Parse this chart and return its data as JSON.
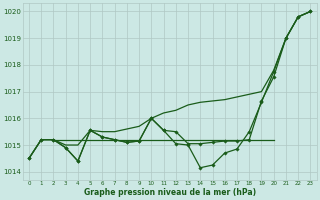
{
  "background_color": "#cce8e4",
  "grid_color": "#b0c8c4",
  "line_color": "#1a5c1a",
  "title": "Graphe pression niveau de la mer (hPa)",
  "xlim": [
    -0.5,
    23.5
  ],
  "ylim": [
    1013.7,
    1020.3
  ],
  "yticks": [
    1014,
    1015,
    1016,
    1017,
    1018,
    1019,
    1020
  ],
  "xticks": [
    0,
    1,
    2,
    3,
    4,
    5,
    6,
    7,
    8,
    9,
    10,
    11,
    12,
    13,
    14,
    15,
    16,
    17,
    18,
    19,
    20,
    21,
    22,
    23
  ],
  "series": [
    {
      "x": [
        0,
        1,
        2,
        3,
        4,
        5,
        6,
        7,
        8,
        9,
        10,
        11,
        12,
        13,
        14,
        15,
        16,
        17,
        18,
        19,
        20,
        21,
        22,
        23
      ],
      "y": [
        1014.5,
        1015.2,
        1015.2,
        1015.0,
        1015.0,
        1015.55,
        1015.5,
        1015.5,
        1015.6,
        1015.7,
        1016.0,
        1016.2,
        1016.3,
        1016.5,
        1016.6,
        1016.65,
        1016.7,
        1016.8,
        1016.9,
        1017.0,
        1017.8,
        1019.0,
        1019.8,
        1020.0
      ],
      "marker": false,
      "lw": 0.9
    },
    {
      "x": [
        2,
        3,
        4,
        5,
        6,
        7,
        8,
        9,
        10,
        11,
        12,
        13,
        14,
        15,
        16,
        17,
        18,
        19,
        20
      ],
      "y": [
        1015.2,
        1015.2,
        1015.2,
        1015.2,
        1015.2,
        1015.2,
        1015.2,
        1015.2,
        1015.2,
        1015.2,
        1015.2,
        1015.2,
        1015.2,
        1015.2,
        1015.2,
        1015.2,
        1015.2,
        1015.2,
        1015.2
      ],
      "marker": false,
      "lw": 0.9
    },
    {
      "x": [
        0,
        1,
        2,
        3,
        4,
        5,
        6,
        7,
        8,
        9,
        10,
        11,
        12,
        13,
        14,
        15,
        16,
        17,
        18,
        19,
        20,
        21,
        22,
        23
      ],
      "y": [
        1014.5,
        1015.2,
        1015.2,
        1014.9,
        1014.4,
        1015.55,
        1015.3,
        1015.2,
        1015.1,
        1015.15,
        1016.0,
        1015.55,
        1015.5,
        1015.05,
        1015.05,
        1015.1,
        1015.15,
        1015.15,
        1015.2,
        1016.65,
        1017.55,
        1019.0,
        1019.8,
        1020.0
      ],
      "marker": true,
      "lw": 0.9
    },
    {
      "x": [
        0,
        1,
        2,
        3,
        4,
        5,
        6,
        7,
        8,
        9,
        10,
        11,
        12,
        13,
        14,
        15,
        16,
        17,
        18,
        19,
        20,
        21,
        22,
        23
      ],
      "y": [
        1014.5,
        1015.2,
        1015.2,
        1014.9,
        1014.4,
        1015.55,
        1015.3,
        1015.2,
        1015.1,
        1015.15,
        1016.0,
        1015.55,
        1015.05,
        1015.0,
        1014.15,
        1014.25,
        1014.7,
        1014.85,
        1015.5,
        1016.6,
        1017.75,
        1019.0,
        1019.8,
        1020.0
      ],
      "marker": true,
      "lw": 0.9
    }
  ]
}
